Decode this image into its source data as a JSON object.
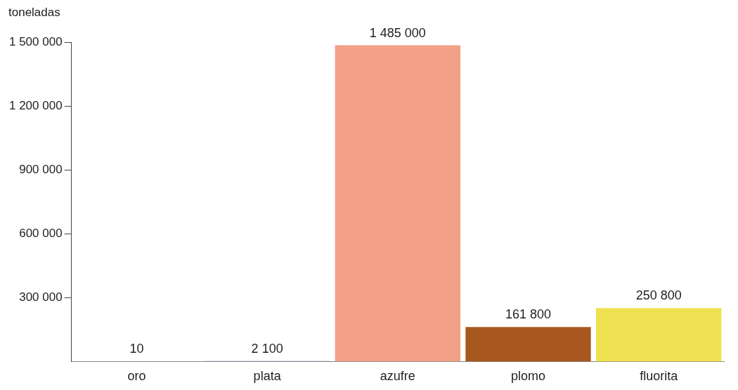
{
  "chart_data": {
    "type": "bar",
    "ylabel": "toneladas",
    "categories": [
      "oro",
      "plata",
      "azufre",
      "plomo",
      "fluorita"
    ],
    "values": [
      10,
      2100,
      1485000,
      161800,
      250800
    ],
    "value_labels": [
      "10",
      "2 100",
      "1 485 000",
      "161 800",
      "250 800"
    ],
    "colors": [
      "#d9a020",
      "#7a7a98",
      "#f2a088",
      "#a8581e",
      "#eee050"
    ],
    "ylim": [
      0,
      1500000
    ],
    "yticks": [
      {
        "value": 300000,
        "label": "300 000"
      },
      {
        "value": 600000,
        "label": "600 000"
      },
      {
        "value": 900000,
        "label": "900 000"
      },
      {
        "value": 1200000,
        "label": "1 200 000"
      },
      {
        "value": 1500000,
        "label": "1 500 000"
      }
    ],
    "grid": false,
    "legend": false
  }
}
